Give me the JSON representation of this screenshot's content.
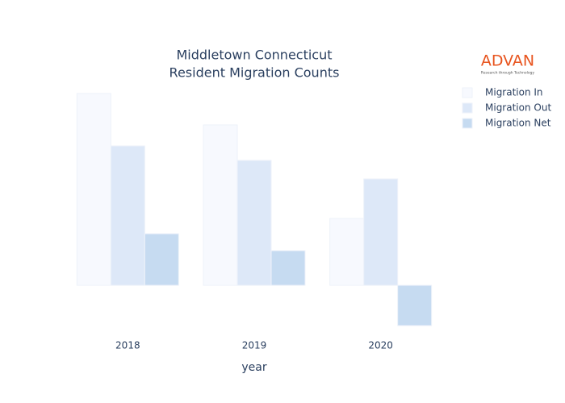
{
  "chart_data": {
    "type": "bar",
    "title": [
      "Middletown Connecticut",
      "Resident Migration Counts"
    ],
    "x_label": "year",
    "categories": [
      "2018",
      "2019",
      "2020"
    ],
    "series": [
      {
        "name": "Migration In",
        "color": "#f7f9fe",
        "values": [
          238,
          199,
          83
        ]
      },
      {
        "name": "Migration Out",
        "color": "#dde8f8",
        "values": [
          173,
          155,
          132
        ]
      },
      {
        "name": "Migration Net",
        "color": "#c6dbf1",
        "values": [
          64,
          43,
          -50
        ]
      }
    ],
    "ylim": [
      -70,
      250
    ],
    "grid": false,
    "legend": "top-right"
  },
  "logo": {
    "text": "ADVAN",
    "tagline": "Research through Technology"
  }
}
